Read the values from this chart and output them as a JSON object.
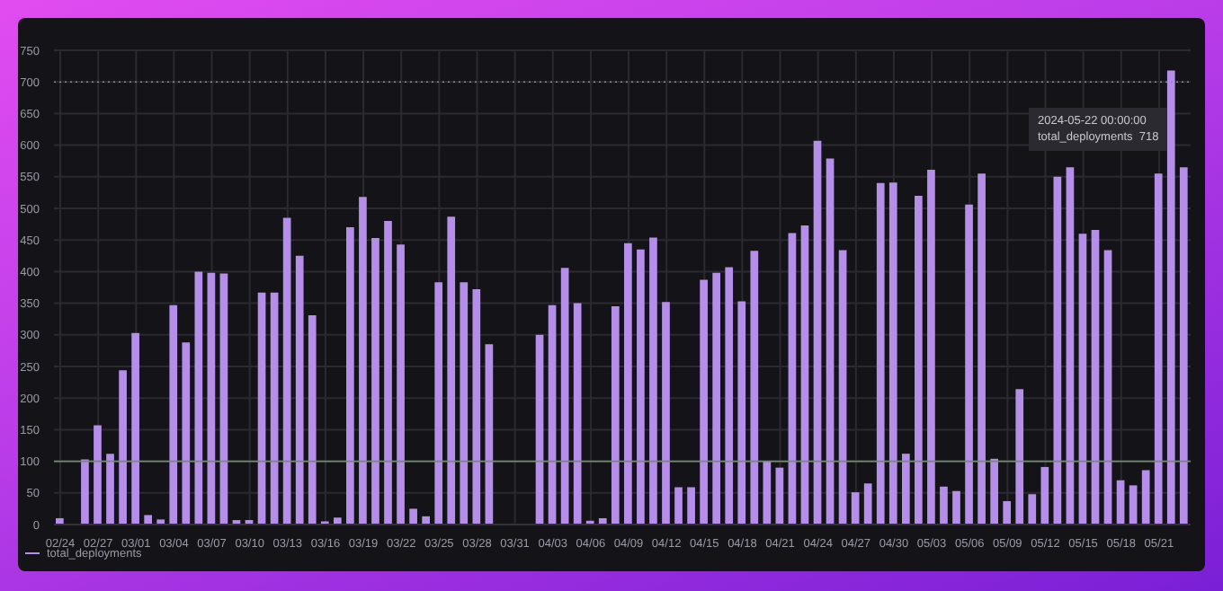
{
  "chart_data": {
    "type": "bar",
    "categories": [
      "02/24",
      null,
      null,
      "02/27",
      null,
      null,
      "03/01",
      null,
      null,
      "03/04",
      null,
      null,
      "03/07",
      null,
      null,
      "03/10",
      null,
      null,
      "03/13",
      null,
      null,
      "03/16",
      null,
      null,
      "03/19",
      null,
      null,
      "03/22",
      null,
      null,
      "03/25",
      null,
      null,
      "03/28",
      null,
      null,
      "03/31",
      null,
      null,
      "04/03",
      null,
      null,
      "04/06",
      null,
      null,
      "04/09",
      null,
      null,
      "04/12",
      null,
      null,
      "04/15",
      null,
      null,
      "04/18",
      null,
      null,
      "04/21",
      null,
      null,
      "04/24",
      null,
      null,
      "04/27",
      null,
      null,
      "04/30",
      null,
      null,
      "05/03",
      null,
      null,
      "05/06",
      null,
      null,
      "05/09",
      null,
      null,
      "05/12",
      null,
      null,
      "05/15",
      null,
      null,
      "05/18",
      null,
      null,
      "05/21",
      null,
      null
    ],
    "series": [
      {
        "name": "total_deployments",
        "color": "#b48ee8",
        "values": [
          10,
          null,
          103,
          157,
          112,
          244,
          303,
          15,
          8,
          347,
          288,
          400,
          398,
          397,
          7,
          7,
          367,
          367,
          485,
          425,
          331,
          5,
          11,
          470,
          518,
          453,
          480,
          443,
          25,
          13,
          383,
          487,
          383,
          372,
          285,
          null,
          null,
          null,
          300,
          347,
          406,
          350,
          6,
          10,
          345,
          445,
          435,
          454,
          352,
          59,
          59,
          387,
          398,
          407,
          353,
          433,
          100,
          90,
          461,
          473,
          607,
          579,
          434,
          51,
          65,
          540,
          541,
          112,
          520,
          561,
          60,
          53,
          506,
          555,
          104,
          37,
          214,
          48,
          91,
          550,
          565,
          460,
          466,
          434,
          70,
          62,
          86,
          555,
          718,
          565
        ]
      }
    ],
    "ylim": [
      0,
      750
    ],
    "yticks": [
      0,
      50,
      100,
      150,
      200,
      250,
      300,
      350,
      400,
      450,
      500,
      550,
      600,
      650,
      700,
      750
    ],
    "grid": true,
    "legend": "bottom left",
    "ref_lines": [
      {
        "axis": "y",
        "value": 700,
        "color": "#8c8c80",
        "line_style": "dotted"
      },
      {
        "axis": "y",
        "value": 100,
        "color": "#6e8f68",
        "line_style": "solid"
      }
    ],
    "annotations": [
      "2024-05-22 00:00:00",
      "total_deployments  718"
    ]
  }
}
